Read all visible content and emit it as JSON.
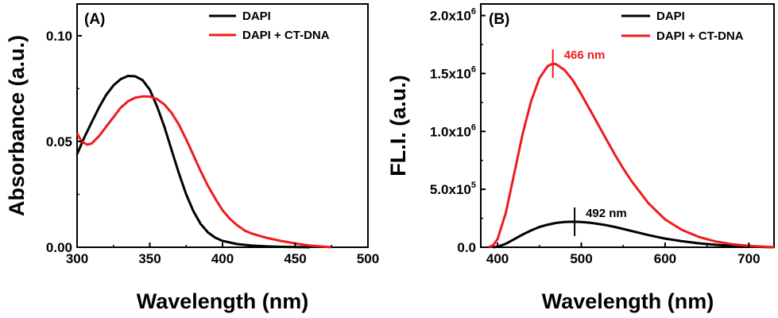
{
  "chart_data": [
    {
      "panel_label": "(A)",
      "type": "line",
      "xlabel": "Wavelength (nm)",
      "ylabel": "Absorbance (a.u.)",
      "xlim": [
        300,
        500
      ],
      "ylim": [
        0,
        0.115
      ],
      "x_ticks": [
        300,
        350,
        400,
        450,
        500
      ],
      "x_tick_labels": [
        "300",
        "350",
        "400",
        "450",
        "500"
      ],
      "y_ticks": [
        0,
        0.05,
        0.1
      ],
      "y_tick_labels": [
        "0.00",
        "0.05",
        "0.10"
      ],
      "legend_position": "top-right",
      "series": [
        {
          "name": "DAPI",
          "color": "#000000",
          "x": [
            300,
            305,
            310,
            315,
            320,
            325,
            330,
            335,
            340,
            345,
            350,
            355,
            360,
            365,
            370,
            375,
            380,
            385,
            390,
            395,
            400,
            410,
            420,
            430,
            440,
            450,
            460
          ],
          "y": [
            0.044,
            0.052,
            0.059,
            0.066,
            0.072,
            0.0765,
            0.0795,
            0.081,
            0.0808,
            0.079,
            0.0745,
            0.0665,
            0.057,
            0.046,
            0.035,
            0.025,
            0.017,
            0.011,
            0.007,
            0.0045,
            0.003,
            0.0015,
            0.0008,
            0.0004,
            0.0002,
            0.0001,
            0.0
          ]
        },
        {
          "name": "DAPI + CT-DNA",
          "color": "#ee1c1c",
          "x": [
            300,
            303,
            307,
            310,
            315,
            320,
            325,
            330,
            335,
            340,
            345,
            350,
            355,
            360,
            365,
            370,
            375,
            380,
            385,
            390,
            395,
            400,
            405,
            410,
            415,
            420,
            425,
            430,
            440,
            450,
            460,
            475
          ],
          "y": [
            0.054,
            0.05,
            0.0485,
            0.049,
            0.0525,
            0.057,
            0.0615,
            0.066,
            0.069,
            0.0707,
            0.0713,
            0.0712,
            0.07,
            0.0675,
            0.0635,
            0.058,
            0.051,
            0.0435,
            0.036,
            0.029,
            0.023,
            0.0175,
            0.0135,
            0.0105,
            0.008,
            0.0065,
            0.0055,
            0.0045,
            0.003,
            0.0018,
            0.0008,
            0.0
          ]
        }
      ]
    },
    {
      "panel_label": "(B)",
      "type": "line",
      "xlabel": "Wavelength (nm)",
      "ylabel": "FL.I. (a.u.)",
      "xlim": [
        380,
        730
      ],
      "ylim": [
        0,
        2100000
      ],
      "x_ticks": [
        400,
        500,
        600,
        700
      ],
      "x_tick_labels": [
        "400",
        "500",
        "600",
        "700"
      ],
      "y_ticks": [
        0,
        500000,
        1000000,
        1500000,
        2000000
      ],
      "y_tick_labels": [
        {
          "base": "0.0",
          "exp": ""
        },
        {
          "base": "5.0x10",
          "exp": "5"
        },
        {
          "base": "1.0x10",
          "exp": "6"
        },
        {
          "base": "1.5x10",
          "exp": "6"
        },
        {
          "base": "2.0x10",
          "exp": "6"
        }
      ],
      "legend_position": "top-right",
      "series": [
        {
          "name": "DAPI",
          "color": "#000000",
          "x": [
            395,
            400,
            410,
            420,
            430,
            440,
            450,
            460,
            470,
            480,
            490,
            500,
            510,
            520,
            530,
            540,
            550,
            560,
            580,
            600,
            620,
            640,
            660,
            680,
            700,
            720,
            730
          ],
          "y": [
            0,
            5000,
            30000,
            70000,
            110000,
            145000,
            175000,
            195000,
            210000,
            218000,
            220000,
            218000,
            212000,
            202000,
            190000,
            175000,
            158000,
            140000,
            105000,
            75000,
            52000,
            34000,
            21000,
            12000,
            6000,
            2000,
            0
          ]
        },
        {
          "name": "DAPI + CT-DNA",
          "color": "#ee1c1c",
          "x": [
            390,
            395,
            400,
            410,
            420,
            430,
            440,
            450,
            460,
            466,
            470,
            480,
            490,
            500,
            510,
            520,
            530,
            540,
            550,
            560,
            580,
            600,
            620,
            640,
            660,
            680,
            700,
            720,
            730
          ],
          "y": [
            0,
            20000,
            70000,
            300000,
            640000,
            980000,
            1260000,
            1460000,
            1565000,
            1585000,
            1580000,
            1530000,
            1440000,
            1320000,
            1190000,
            1060000,
            930000,
            800000,
            680000,
            570000,
            380000,
            240000,
            150000,
            90000,
            50000,
            26000,
            12000,
            4000,
            0
          ]
        }
      ],
      "annotations": [
        {
          "text": "466 nm",
          "x": 466,
          "y": 1585000,
          "color": "#ee1c1c"
        },
        {
          "text": "492 nm",
          "x": 492,
          "y": 220000,
          "color": "#000000"
        }
      ]
    }
  ]
}
